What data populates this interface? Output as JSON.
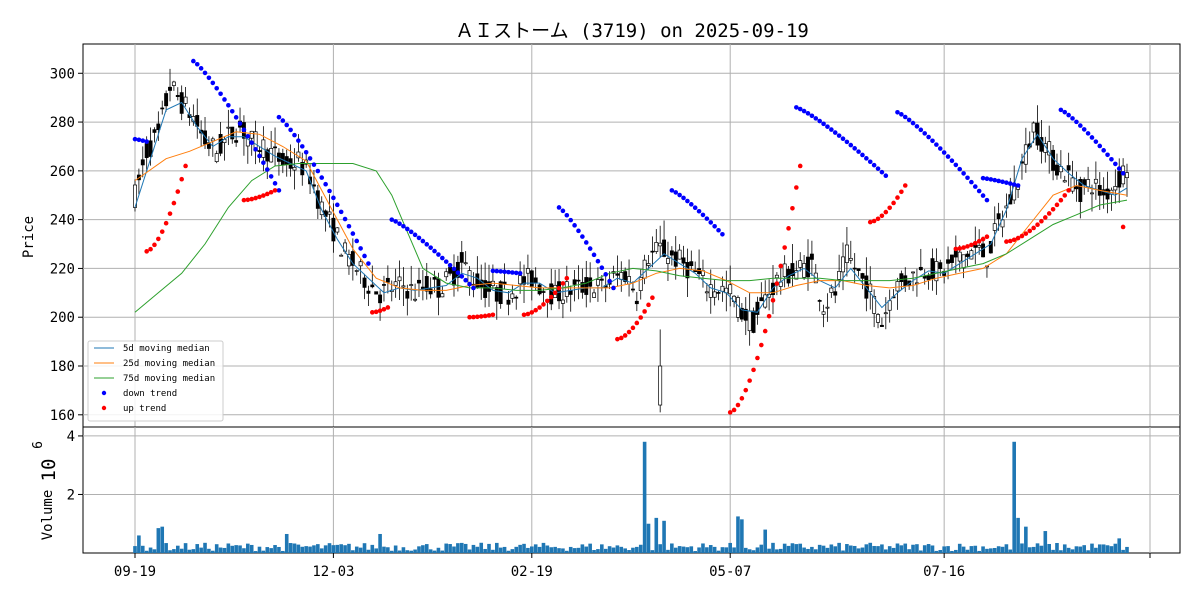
{
  "chart_data": {
    "type": "candlestick",
    "title": "ＡＩストーム (3719) on 2025-09-19",
    "price_panel": {
      "ylabel": "Price",
      "ylim": [
        155,
        312
      ],
      "yticks": [
        160,
        180,
        200,
        220,
        240,
        260,
        280,
        300
      ],
      "grid": true,
      "legend_position": "lower-left",
      "legend": [
        {
          "label": " 5d moving median",
          "color": "#1f77b4",
          "kind": "line"
        },
        {
          "label": "25d moving median",
          "color": "#ff7f0e",
          "kind": "line"
        },
        {
          "label": "75d moving median",
          "color": "#2ca02c",
          "kind": "line"
        },
        {
          "label": "down trend",
          "color": "#0000ff",
          "kind": "dot"
        },
        {
          "label": "up trend",
          "color": "#ff0000",
          "kind": "dot"
        }
      ]
    },
    "volume_panel": {
      "ylabel": "Volume",
      "scale_label": "10",
      "scale_exponent": "6",
      "yticks": [
        "2",
        "4"
      ],
      "ylim": [
        0,
        4.1
      ],
      "bar_color": "#1f77b4"
    },
    "x_axis": {
      "ticks": [
        "09-19",
        "12-03",
        "02-19",
        "05-07",
        "07-16",
        ""
      ],
      "range": [
        0,
        255
      ]
    },
    "price_path": [
      [
        0,
        250
      ],
      [
        3,
        268
      ],
      [
        6,
        275
      ],
      [
        9,
        295
      ],
      [
        12,
        288
      ],
      [
        15,
        282
      ],
      [
        18,
        272
      ],
      [
        21,
        268
      ],
      [
        24,
        274
      ],
      [
        27,
        278
      ],
      [
        30,
        272
      ],
      [
        33,
        270
      ],
      [
        36,
        266
      ],
      [
        39,
        262
      ],
      [
        42,
        264
      ],
      [
        45,
        258
      ],
      [
        48,
        245
      ],
      [
        51,
        236
      ],
      [
        54,
        226
      ],
      [
        57,
        220
      ],
      [
        60,
        214
      ],
      [
        63,
        210
      ],
      [
        66,
        212
      ],
      [
        69,
        213
      ],
      [
        72,
        210
      ],
      [
        75,
        213
      ],
      [
        78,
        212
      ],
      [
        81,
        216
      ],
      [
        84,
        222
      ],
      [
        87,
        216
      ],
      [
        90,
        212
      ],
      [
        93,
        210
      ],
      [
        96,
        210
      ],
      [
        99,
        214
      ],
      [
        102,
        216
      ],
      [
        105,
        212
      ],
      [
        108,
        209
      ],
      [
        111,
        211
      ],
      [
        114,
        212
      ],
      [
        117,
        213
      ],
      [
        120,
        212
      ],
      [
        123,
        216
      ],
      [
        126,
        218
      ],
      [
        129,
        210
      ],
      [
        132,
        225
      ],
      [
        135,
        228
      ],
      [
        138,
        225
      ],
      [
        141,
        222
      ],
      [
        144,
        218
      ],
      [
        147,
        213
      ],
      [
        150,
        212
      ],
      [
        153,
        210
      ],
      [
        156,
        202
      ],
      [
        159,
        198
      ],
      [
        162,
        208
      ],
      [
        165,
        215
      ],
      [
        168,
        218
      ],
      [
        171,
        220
      ],
      [
        174,
        222
      ],
      [
        177,
        205
      ],
      [
        180,
        210
      ],
      [
        183,
        225
      ],
      [
        186,
        218
      ],
      [
        189,
        210
      ],
      [
        192,
        198
      ],
      [
        195,
        212
      ],
      [
        198,
        215
      ],
      [
        201,
        218
      ],
      [
        204,
        220
      ],
      [
        207,
        218
      ],
      [
        210,
        222
      ],
      [
        213,
        225
      ],
      [
        216,
        228
      ],
      [
        219,
        225
      ],
      [
        222,
        238
      ],
      [
        225,
        248
      ],
      [
        228,
        262
      ],
      [
        231,
        278
      ],
      [
        234,
        270
      ],
      [
        237,
        262
      ],
      [
        240,
        258
      ],
      [
        243,
        252
      ],
      [
        246,
        255
      ],
      [
        249,
        250
      ],
      [
        252,
        255
      ],
      [
        255,
        262
      ]
    ],
    "ma5": [
      [
        0,
        245
      ],
      [
        4,
        265
      ],
      [
        8,
        285
      ],
      [
        12,
        288
      ],
      [
        16,
        278
      ],
      [
        20,
        270
      ],
      [
        24,
        274
      ],
      [
        28,
        274
      ],
      [
        32,
        270
      ],
      [
        36,
        266
      ],
      [
        40,
        263
      ],
      [
        44,
        260
      ],
      [
        48,
        244
      ],
      [
        52,
        232
      ],
      [
        56,
        222
      ],
      [
        60,
        216
      ],
      [
        64,
        210
      ],
      [
        68,
        212
      ],
      [
        72,
        211
      ],
      [
        76,
        212
      ],
      [
        80,
        213
      ],
      [
        84,
        218
      ],
      [
        88,
        216
      ],
      [
        92,
        211
      ],
      [
        96,
        210
      ],
      [
        100,
        214
      ],
      [
        104,
        214
      ],
      [
        108,
        210
      ],
      [
        112,
        211
      ],
      [
        116,
        212
      ],
      [
        120,
        212
      ],
      [
        124,
        216
      ],
      [
        128,
        214
      ],
      [
        132,
        220
      ],
      [
        136,
        226
      ],
      [
        140,
        222
      ],
      [
        144,
        218
      ],
      [
        148,
        212
      ],
      [
        152,
        210
      ],
      [
        156,
        203
      ],
      [
        160,
        202
      ],
      [
        164,
        212
      ],
      [
        168,
        217
      ],
      [
        172,
        220
      ],
      [
        176,
        215
      ],
      [
        180,
        212
      ],
      [
        184,
        220
      ],
      [
        188,
        212
      ],
      [
        192,
        204
      ],
      [
        196,
        210
      ],
      [
        200,
        215
      ],
      [
        204,
        219
      ],
      [
        208,
        218
      ],
      [
        212,
        222
      ],
      [
        216,
        226
      ],
      [
        220,
        230
      ],
      [
        224,
        244
      ],
      [
        228,
        265
      ],
      [
        232,
        275
      ],
      [
        236,
        265
      ],
      [
        240,
        259
      ],
      [
        244,
        254
      ],
      [
        248,
        252
      ],
      [
        252,
        250
      ],
      [
        255,
        253
      ]
    ],
    "ma25": [
      [
        0,
        256
      ],
      [
        8,
        265
      ],
      [
        14,
        268
      ],
      [
        20,
        272
      ],
      [
        26,
        276
      ],
      [
        32,
        275
      ],
      [
        38,
        270
      ],
      [
        44,
        264
      ],
      [
        50,
        246
      ],
      [
        56,
        228
      ],
      [
        62,
        216
      ],
      [
        68,
        212
      ],
      [
        74,
        211
      ],
      [
        80,
        211
      ],
      [
        86,
        213
      ],
      [
        92,
        214
      ],
      [
        98,
        213
      ],
      [
        104,
        212
      ],
      [
        110,
        212
      ],
      [
        116,
        212
      ],
      [
        122,
        212
      ],
      [
        128,
        214
      ],
      [
        134,
        218
      ],
      [
        140,
        220
      ],
      [
        146,
        219
      ],
      [
        152,
        215
      ],
      [
        158,
        210
      ],
      [
        164,
        210
      ],
      [
        170,
        213
      ],
      [
        176,
        215
      ],
      [
        182,
        215
      ],
      [
        188,
        213
      ],
      [
        194,
        212
      ],
      [
        200,
        213
      ],
      [
        206,
        216
      ],
      [
        212,
        218
      ],
      [
        218,
        220
      ],
      [
        224,
        226
      ],
      [
        230,
        238
      ],
      [
        236,
        250
      ],
      [
        242,
        254
      ],
      [
        248,
        252
      ],
      [
        255,
        250
      ]
    ],
    "ma75": [
      [
        0,
        202
      ],
      [
        6,
        210
      ],
      [
        12,
        218
      ],
      [
        18,
        230
      ],
      [
        24,
        245
      ],
      [
        30,
        256
      ],
      [
        36,
        262
      ],
      [
        42,
        263
      ],
      [
        50,
        263
      ],
      [
        56,
        263
      ],
      [
        62,
        260
      ],
      [
        66,
        250
      ],
      [
        70,
        235
      ],
      [
        74,
        220
      ],
      [
        80,
        214
      ],
      [
        86,
        212
      ],
      [
        92,
        212
      ],
      [
        98,
        211
      ],
      [
        104,
        211
      ],
      [
        110,
        212
      ],
      [
        116,
        214
      ],
      [
        122,
        218
      ],
      [
        128,
        220
      ],
      [
        134,
        219
      ],
      [
        140,
        217
      ],
      [
        146,
        216
      ],
      [
        152,
        215
      ],
      [
        158,
        215
      ],
      [
        164,
        216
      ],
      [
        170,
        216
      ],
      [
        176,
        216
      ],
      [
        182,
        215
      ],
      [
        188,
        215
      ],
      [
        194,
        215
      ],
      [
        200,
        216
      ],
      [
        206,
        218
      ],
      [
        212,
        220
      ],
      [
        218,
        222
      ],
      [
        224,
        226
      ],
      [
        230,
        232
      ],
      [
        236,
        238
      ],
      [
        242,
        242
      ],
      [
        248,
        246
      ],
      [
        255,
        248
      ]
    ],
    "down_trend_segments": [
      {
        "x": [
          0,
          3
        ],
        "y": [
          273,
          272
        ]
      },
      {
        "x": [
          15,
          37
        ],
        "y": [
          305,
          252
        ]
      },
      {
        "x": [
          37,
          60
        ],
        "y": [
          282,
          222
        ]
      },
      {
        "x": [
          66,
          87
        ],
        "y": [
          240,
          212
        ]
      },
      {
        "x": [
          92,
          99
        ],
        "y": [
          219,
          218
        ]
      },
      {
        "x": [
          109,
          123
        ],
        "y": [
          245,
          212
        ]
      },
      {
        "x": [
          138,
          151
        ],
        "y": [
          252,
          234
        ]
      },
      {
        "x": [
          170,
          193
        ],
        "y": [
          286,
          258
        ]
      },
      {
        "x": [
          196,
          219
        ],
        "y": [
          284,
          248
        ]
      },
      {
        "x": [
          218,
          227
        ],
        "y": [
          257,
          254
        ]
      },
      {
        "x": [
          238,
          254
        ],
        "y": [
          285,
          259
        ]
      }
    ],
    "up_trend_segments": [
      {
        "x": [
          3,
          13
        ],
        "y": [
          227,
          262
        ]
      },
      {
        "x": [
          28,
          36
        ],
        "y": [
          248,
          252
        ]
      },
      {
        "x": [
          61,
          65
        ],
        "y": [
          202,
          204
        ]
      },
      {
        "x": [
          86,
          92
        ],
        "y": [
          200,
          201
        ]
      },
      {
        "x": [
          100,
          111
        ],
        "y": [
          201,
          216
        ]
      },
      {
        "x": [
          124,
          133
        ],
        "y": [
          191,
          208
        ]
      },
      {
        "x": [
          153,
          171
        ],
        "y": [
          161,
          262
        ]
      },
      {
        "x": [
          189,
          198
        ],
        "y": [
          239,
          254
        ]
      },
      {
        "x": [
          211,
          219
        ],
        "y": [
          228,
          233
        ]
      },
      {
        "x": [
          224,
          240
        ],
        "y": [
          231,
          252
        ]
      },
      {
        "x": [
          254,
          254
        ],
        "y": [
          237,
          237
        ]
      }
    ],
    "volume_spikes": [
      {
        "x": 131,
        "v": 3.8
      },
      {
        "x": 132,
        "v": 1.0
      },
      {
        "x": 134,
        "v": 1.2
      },
      {
        "x": 136,
        "v": 1.1
      },
      {
        "x": 155,
        "v": 1.25
      },
      {
        "x": 156,
        "v": 1.15
      },
      {
        "x": 162,
        "v": 0.8
      },
      {
        "x": 226,
        "v": 3.8
      },
      {
        "x": 227,
        "v": 1.2
      },
      {
        "x": 229,
        "v": 0.9
      },
      {
        "x": 234,
        "v": 0.75
      },
      {
        "x": 6,
        "v": 0.85
      },
      {
        "x": 7,
        "v": 0.9
      },
      {
        "x": 1,
        "v": 0.6
      },
      {
        "x": 39,
        "v": 0.65
      },
      {
        "x": 63,
        "v": 0.65
      },
      {
        "x": 253,
        "v": 0.5
      }
    ],
    "volume_baseline": 0.22
  }
}
